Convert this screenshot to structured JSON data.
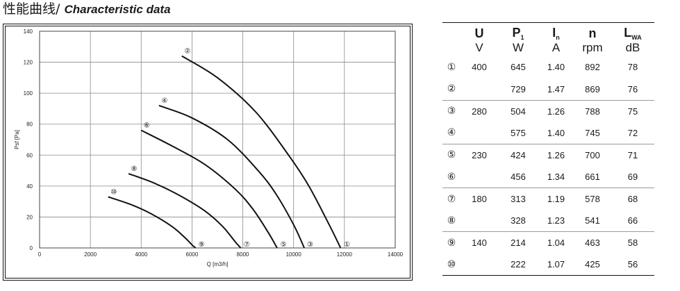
{
  "header": {
    "title_cn": "性能曲线/",
    "title_en": "Characteristic data"
  },
  "chart_data": {
    "type": "line",
    "xlabel": "Q [m3/h]",
    "ylabel": "Psf [Pa]",
    "xlim": [
      0,
      14000
    ],
    "ylim": [
      0,
      140
    ],
    "xticks": [
      "0",
      "2000",
      "4000",
      "6000",
      "8000",
      "10000",
      "12000",
      "14000"
    ],
    "yticks": [
      "0",
      "20",
      "40",
      "60",
      "80",
      "100",
      "120",
      "140"
    ],
    "grid": true,
    "series": [
      {
        "name": "②",
        "x": [
          5600,
          7000,
          8500,
          9800,
          10600,
          11400,
          11850
        ],
        "y": [
          124,
          110,
          88,
          60,
          40,
          15,
          0
        ]
      },
      {
        "name": "④",
        "x": [
          4700,
          6000,
          7400,
          8600,
          9300,
          10000,
          10420
        ],
        "y": [
          92,
          84,
          70,
          50,
          35,
          15,
          0
        ]
      },
      {
        "name": "⑥",
        "x": [
          4000,
          5200,
          6500,
          7700,
          8400,
          9000,
          9350
        ],
        "y": [
          76,
          66,
          54,
          38,
          25,
          10,
          0
        ]
      },
      {
        "name": "⑧",
        "x": [
          3500,
          4500,
          5500,
          6500,
          7200,
          7700,
          7920
        ],
        "y": [
          48,
          42,
          34,
          24,
          14,
          4,
          0
        ]
      },
      {
        "name": "⑩",
        "x": [
          2700,
          3600,
          4400,
          5200,
          5700,
          6000,
          6140
        ],
        "y": [
          33,
          28,
          22,
          14,
          7,
          2,
          0
        ]
      }
    ],
    "end_labels": [
      {
        "text": "①",
        "x": 12100
      },
      {
        "text": "③",
        "x": 10650
      },
      {
        "text": "⑤",
        "x": 9600
      },
      {
        "text": "⑦",
        "x": 8150
      },
      {
        "text": "⑨",
        "x": 6370
      }
    ]
  },
  "table": {
    "headers": [
      {
        "sym": "U",
        "sub": "",
        "unit": "V"
      },
      {
        "sym": "P",
        "sub": "1",
        "unit": "W"
      },
      {
        "sym": "I",
        "sub": "n",
        "unit": "A"
      },
      {
        "sym": "n",
        "sub": "",
        "unit": "rpm"
      },
      {
        "sym": "L",
        "sub": "WA",
        "unit": "dB"
      }
    ],
    "rows": [
      {
        "id": "①",
        "u": "400",
        "p": "645",
        "i": "1.40",
        "n": "892",
        "l": "78"
      },
      {
        "id": "②",
        "u": "",
        "p": "729",
        "i": "1.47",
        "n": "869",
        "l": "76"
      },
      {
        "id": "③",
        "u": "280",
        "p": "504",
        "i": "1.26",
        "n": "788",
        "l": "75"
      },
      {
        "id": "④",
        "u": "",
        "p": "575",
        "i": "1.40",
        "n": "745",
        "l": "72"
      },
      {
        "id": "⑤",
        "u": "230",
        "p": "424",
        "i": "1.26",
        "n": "700",
        "l": "71"
      },
      {
        "id": "⑥",
        "u": "",
        "p": "456",
        "i": "1.34",
        "n": "661",
        "l": "69"
      },
      {
        "id": "⑦",
        "u": "180",
        "p": "313",
        "i": "1.19",
        "n": "578",
        "l": "68"
      },
      {
        "id": "⑧",
        "u": "",
        "p": "328",
        "i": "1.23",
        "n": "541",
        "l": "66"
      },
      {
        "id": "⑨",
        "u": "140",
        "p": "214",
        "i": "1.04",
        "n": "463",
        "l": "58"
      },
      {
        "id": "⑩",
        "u": "",
        "p": "222",
        "i": "1.07",
        "n": "425",
        "l": "56"
      }
    ]
  }
}
